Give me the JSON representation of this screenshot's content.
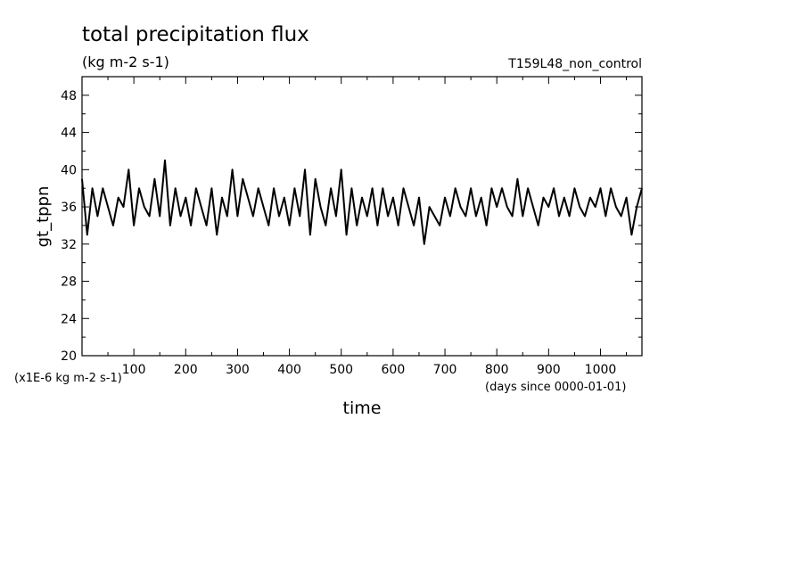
{
  "chart_data": {
    "type": "line",
    "title": "total precipitation flux",
    "subtitle": "(kg m-2 s-1)",
    "run_label": "T159L48_non_control",
    "xlabel": "time",
    "x_units_note": "(days since 0000-01-01)",
    "ylabel": "gt_tppn",
    "y_scale_note": "(x1E-6 kg m-2 s-1)",
    "xlim": [
      0,
      1080
    ],
    "ylim": [
      20,
      50
    ],
    "x_ticks": [
      100,
      200,
      300,
      400,
      500,
      600,
      700,
      800,
      900,
      1000
    ],
    "y_ticks": [
      20,
      24,
      28,
      32,
      36,
      40,
      44,
      48
    ],
    "grid": false,
    "series": [
      {
        "color": "#000000",
        "x": [
          0,
          10,
          20,
          30,
          40,
          50,
          60,
          70,
          80,
          90,
          100,
          110,
          120,
          130,
          140,
          150,
          160,
          170,
          180,
          190,
          200,
          210,
          220,
          230,
          240,
          250,
          260,
          270,
          280,
          290,
          300,
          310,
          320,
          330,
          340,
          350,
          360,
          370,
          380,
          390,
          400,
          410,
          420,
          430,
          440,
          450,
          460,
          470,
          480,
          490,
          500,
          510,
          520,
          530,
          540,
          550,
          560,
          570,
          580,
          590,
          600,
          610,
          620,
          630,
          640,
          650,
          660,
          670,
          680,
          690,
          700,
          710,
          720,
          730,
          740,
          750,
          760,
          770,
          780,
          790,
          800,
          810,
          820,
          830,
          840,
          850,
          860,
          870,
          880,
          890,
          900,
          910,
          920,
          930,
          940,
          950,
          960,
          970,
          980,
          990,
          1000,
          1010,
          1020,
          1030,
          1040,
          1050,
          1060,
          1070,
          1080
        ],
        "y": [
          39,
          33,
          38,
          35,
          38,
          36,
          34,
          37,
          36,
          40,
          34,
          38,
          36,
          35,
          39,
          35,
          41,
          34,
          38,
          35,
          37,
          34,
          38,
          36,
          34,
          38,
          33,
          37,
          35,
          40,
          35,
          39,
          37,
          35,
          38,
          36,
          34,
          38,
          35,
          37,
          34,
          38,
          35,
          40,
          33,
          39,
          36,
          34,
          38,
          35,
          40,
          33,
          38,
          34,
          37,
          35,
          38,
          34,
          38,
          35,
          37,
          34,
          38,
          36,
          34,
          37,
          32,
          36,
          35,
          34,
          37,
          35,
          38,
          36,
          35,
          38,
          35,
          37,
          34,
          38,
          36,
          38,
          36,
          35,
          39,
          35,
          38,
          36,
          34,
          37,
          36,
          38,
          35,
          37,
          35,
          38,
          36,
          35,
          37,
          36,
          38,
          35,
          38,
          36,
          35,
          37,
          33,
          36,
          38
        ]
      }
    ]
  }
}
